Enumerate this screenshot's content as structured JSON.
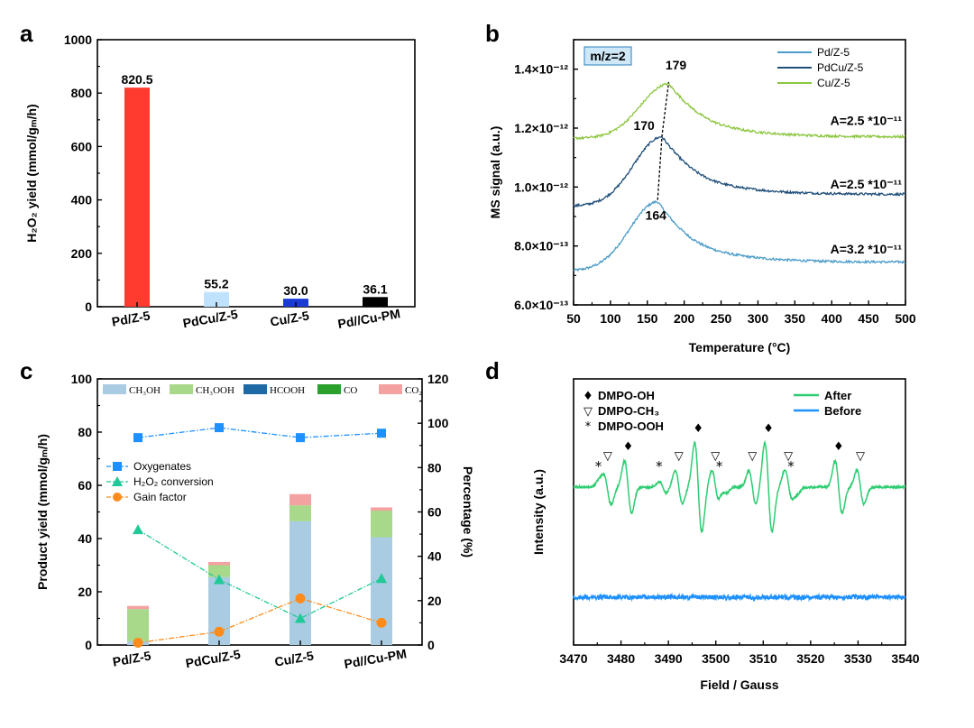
{
  "panels": {
    "a": "a",
    "b": "b",
    "c": "c",
    "d": "d"
  },
  "chart_data": [
    {
      "panel": "a",
      "type": "bar",
      "ylabel": "H₂O₂ yield (mmol/gₘ/h)",
      "ylim": [
        0,
        1000
      ],
      "yticks": [
        "0",
        "200",
        "400",
        "600",
        "800",
        "1000"
      ],
      "categories": [
        "Pd/Z-5",
        "PdCu/Z-5",
        "Cu/Z-5",
        "Pd//Cu-PM"
      ],
      "values": [
        820.5,
        55.2,
        30.0,
        36.1
      ],
      "value_labels": [
        "820.5",
        "55.2",
        "30.0",
        "36.1"
      ],
      "colors": [
        "#ff3b30",
        "#bfe3ff",
        "#1a3ad6",
        "#000000"
      ]
    },
    {
      "panel": "b",
      "type": "line",
      "xlabel": "Temperature (°C)",
      "ylabel": "MS signal (a.u.)",
      "xlim": [
        50,
        500
      ],
      "ylim": [
        6e-13,
        1.5e-12
      ],
      "xticks": [
        "50",
        "100",
        "150",
        "200",
        "250",
        "300",
        "350",
        "400",
        "450",
        "500"
      ],
      "yticks": [
        "6.0×10⁻¹³",
        "8.0×10⁻¹³",
        "1.0×10⁻¹²",
        "1.2×10⁻¹²",
        "1.4×10⁻¹²"
      ],
      "tag": "m/z=2",
      "legend_position": "top-right",
      "series": [
        {
          "name": "Pd/Z-5",
          "color": "#4a9bc8",
          "baseline": 7.15e-13,
          "peak_x": 164,
          "peak_y": 9.5e-13,
          "tail": 7.45e-13,
          "peak_label": "164",
          "area_label": "A=3.2 *10⁻¹¹"
        },
        {
          "name": "PdCu/Z-5",
          "color": "#1f4e79",
          "baseline": 9.35e-13,
          "peak_x": 170,
          "peak_y": 1.17e-12,
          "tail": 9.75e-13,
          "peak_label": "170",
          "area_label": "A=2.5 *10⁻¹¹"
        },
        {
          "name": "Cu/Z-5",
          "color": "#8cc63f",
          "baseline": 1.165e-12,
          "peak_x": 179,
          "peak_y": 1.35e-12,
          "tail": 1.17e-12,
          "peak_label": "179",
          "area_label": "A=2.5 *10⁻¹¹"
        }
      ]
    },
    {
      "panel": "c",
      "type": "bar",
      "ylabel": "Product yield (mmol/gₘ/h)",
      "y2label": "Percentage (%)",
      "ylim": [
        0,
        100
      ],
      "y2lim": [
        0,
        120
      ],
      "yticks": [
        "0",
        "20",
        "40",
        "60",
        "80",
        "100"
      ],
      "y2ticks": [
        "0",
        "20",
        "40",
        "60",
        "80",
        "100",
        "120"
      ],
      "categories": [
        "Pd/Z-5",
        "PdCu/Z-5",
        "Cu/Z-5",
        "Pd//Cu-PM"
      ],
      "stack_series": [
        {
          "name": "CH₃OH",
          "color": "#a9cce3",
          "values": [
            1.5,
            25.5,
            46.5,
            40.5
          ]
        },
        {
          "name": "CH₃OOH",
          "color": "#a8d889",
          "values": [
            12.0,
            4.5,
            6.0,
            10.0
          ]
        },
        {
          "name": "HCOOH",
          "color": "#1f6aa5",
          "values": [
            0.0,
            0.0,
            0.0,
            0.0
          ]
        },
        {
          "name": "CO",
          "color": "#2ca02c",
          "values": [
            0.0,
            0.0,
            0.0,
            0.0
          ]
        },
        {
          "name": "CO₂",
          "color": "#f4a1a1",
          "values": [
            1.2,
            1.2,
            4.2,
            1.2
          ]
        }
      ],
      "line_series": [
        {
          "name": "Oxygenates",
          "color": "#1e90ff",
          "marker": "square",
          "values": [
            93.5,
            98.0,
            93.5,
            95.5
          ]
        },
        {
          "name": "H₂O₂ conversion",
          "color": "#20c997",
          "marker": "triangle",
          "values": [
            52.0,
            29.5,
            12.0,
            30.0
          ]
        },
        {
          "name": "Gain factor",
          "color": "#ff8c1a",
          "marker": "circle",
          "values": [
            1.0,
            6.0,
            21.0,
            10.0
          ]
        }
      ]
    },
    {
      "panel": "d",
      "type": "line",
      "xlabel": "Field / Gauss",
      "ylabel": "Intensity (a.u.)",
      "xlim": [
        3470,
        3540
      ],
      "xticks": [
        "3470",
        "3480",
        "3490",
        "3500",
        "3510",
        "3520",
        "3530",
        "3540"
      ],
      "series": [
        {
          "name": "After",
          "color": "#2ecc71"
        },
        {
          "name": "Before",
          "color": "#1e90ff"
        }
      ],
      "markers_legend": [
        {
          "symbol": "♦",
          "label": "DMPO-OH"
        },
        {
          "symbol": "▽",
          "label": "DMPO-CH₃"
        },
        {
          "symbol": "*",
          "label": "DMPO-OOH"
        }
      ],
      "peaks": [
        {
          "x": 3476.0,
          "symbol": "*"
        },
        {
          "x": 3477.2,
          "symbol": "▽"
        },
        {
          "x": 3481.5,
          "symbol": "♦"
        },
        {
          "x": 3488.8,
          "symbol": "*"
        },
        {
          "x": 3492.2,
          "symbol": "▽"
        },
        {
          "x": 3496.3,
          "symbol": "♦"
        },
        {
          "x": 3499.9,
          "symbol": "▽"
        },
        {
          "x": 3501.5,
          "symbol": "*"
        },
        {
          "x": 3507.7,
          "symbol": "▽"
        },
        {
          "x": 3511.1,
          "symbol": "♦"
        },
        {
          "x": 3515.3,
          "symbol": "▽"
        },
        {
          "x": 3516.6,
          "symbol": "*"
        },
        {
          "x": 3525.9,
          "symbol": "♦"
        },
        {
          "x": 3530.5,
          "symbol": "▽"
        }
      ]
    }
  ]
}
